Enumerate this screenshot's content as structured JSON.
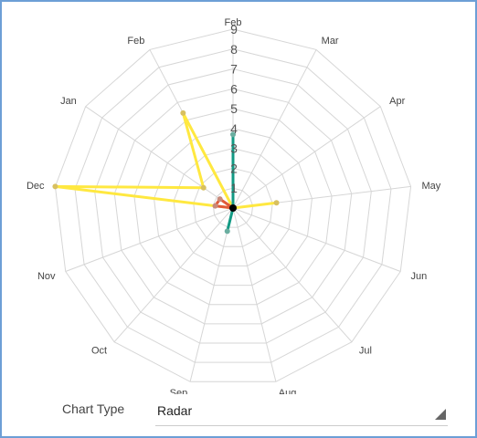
{
  "chart_data": {
    "type": "radar",
    "categories": [
      "Feb",
      "Mar",
      "Apr",
      "May",
      "Jun",
      "Jul",
      "Aug",
      "Sep",
      "Oct",
      "Nov",
      "Dec",
      "Jan",
      "Feb"
    ],
    "radial_ticks": [
      "1",
      "2",
      "3",
      "4",
      "5",
      "6",
      "7",
      "8",
      "9"
    ],
    "rlim": [
      0,
      9
    ],
    "grid": true,
    "series": [
      {
        "color": "#ffe840",
        "marker_color": "#d8c060",
        "values": [
          0,
          0,
          0,
          2.2,
          0,
          0,
          0,
          0,
          0,
          0,
          9,
          1.8,
          5.4
        ]
      },
      {
        "color": "#129a84",
        "marker_color": "#6aaea0",
        "values": [
          3.7,
          0,
          0,
          0,
          0,
          0,
          0,
          1.2,
          0,
          0,
          0,
          0,
          0
        ]
      },
      {
        "color": "#e05a38",
        "marker_color": "#c88a7a",
        "values": [
          0,
          0,
          0,
          0,
          0,
          0,
          0,
          0,
          0,
          0,
          0.9,
          0.8,
          0
        ]
      }
    ]
  },
  "controls": {
    "chart_type_label": "Chart Type",
    "chart_type_value": "Radar"
  }
}
